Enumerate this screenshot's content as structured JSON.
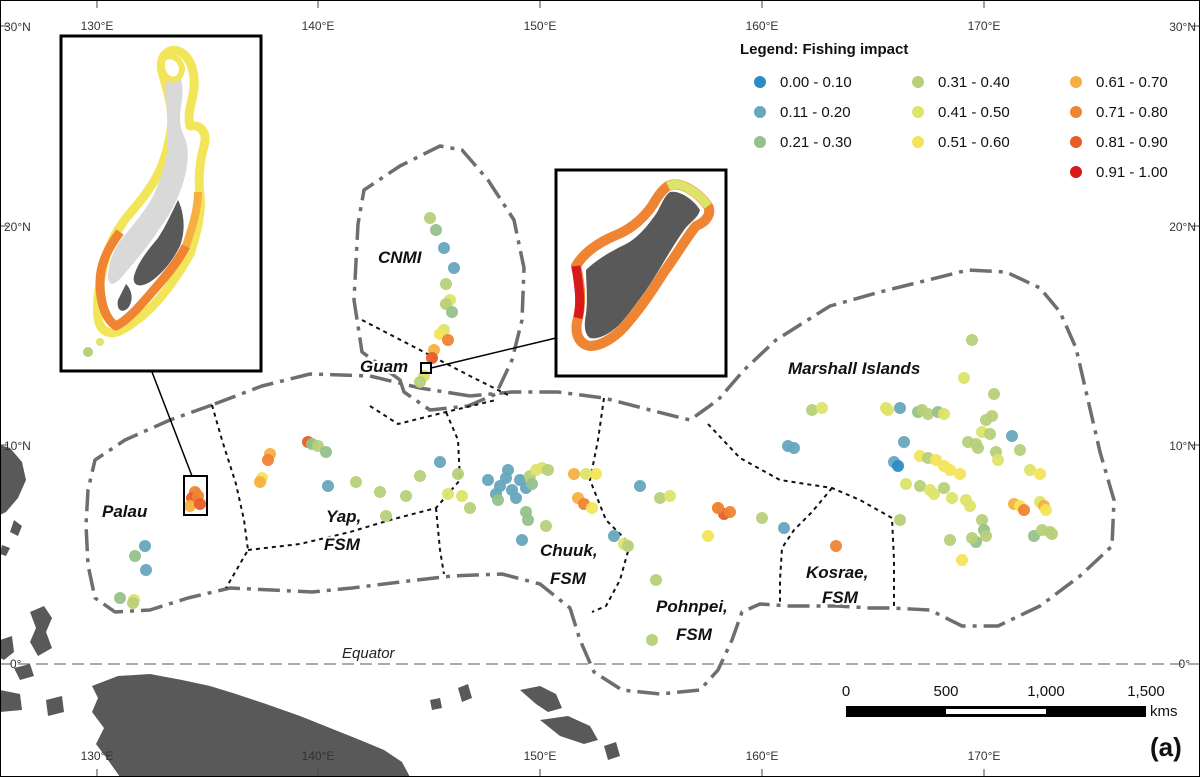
{
  "legend": {
    "title": "Legend: Fishing impact",
    "classes": [
      {
        "label": "0.00 - 0.10",
        "color": "#2b8cc4"
      },
      {
        "label": "0.11 - 0.20",
        "color": "#67a7bd"
      },
      {
        "label": "0.21 - 0.30",
        "color": "#96c18b"
      },
      {
        "label": "0.31 - 0.40",
        "color": "#b7d07a"
      },
      {
        "label": "0.41 - 0.50",
        "color": "#dde46a"
      },
      {
        "label": "0.51 - 0.60",
        "color": "#f3e55a"
      },
      {
        "label": "0.61 - 0.70",
        "color": "#f5b041"
      },
      {
        "label": "0.71 - 0.80",
        "color": "#ef8433"
      },
      {
        "label": "0.81 - 0.90",
        "color": "#e85d26"
      },
      {
        "label": "0.91 - 1.00",
        "color": "#d7191c"
      }
    ]
  },
  "axes": {
    "lon_labels": [
      "130°E",
      "140°E",
      "150°E",
      "160°E",
      "170°E"
    ],
    "lat_labels": [
      "30°N",
      "20°N",
      "10°N",
      "0°"
    ]
  },
  "regions": {
    "cnmi": "CNMI",
    "guam": "Guam",
    "marshall": "Marshall Islands",
    "palau": "Palau",
    "yap_1": "Yap,",
    "yap_2": "FSM",
    "chuuk_1": "Chuuk,",
    "chuuk_2": "FSM",
    "pohnpei_1": "Pohnpei,",
    "pohnpei_2": "FSM",
    "kosrae_1": "Kosrae,",
    "kosrae_2": "FSM"
  },
  "equator_label": "Equator",
  "scale_bar": {
    "ticks": [
      "0",
      "500",
      "1,000",
      "1,500"
    ],
    "unit": "kms"
  },
  "panel_label": "(a)",
  "colors": {
    "land": "#595959",
    "boundary": "#6e6e6e",
    "frame": "#000000"
  }
}
